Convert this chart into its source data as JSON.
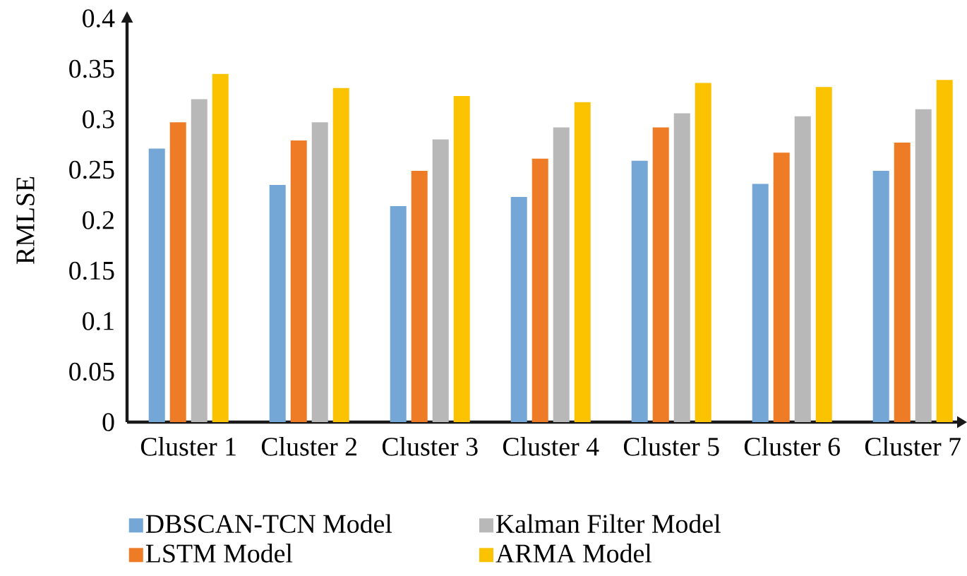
{
  "chart_data": {
    "type": "bar",
    "ylabel": "RMLSE",
    "categories": [
      "Cluster 1",
      "Cluster 2",
      "Cluster 3",
      "Cluster 4",
      "Cluster 5",
      "Cluster 6",
      "Cluster 7"
    ],
    "series": [
      {
        "name": "DBSCAN-TCN Model",
        "color": "#74a6d6",
        "values": [
          0.271,
          0.235,
          0.214,
          0.223,
          0.259,
          0.236,
          0.249
        ]
      },
      {
        "name": "LSTM Model",
        "color": "#ee7b26",
        "values": [
          0.297,
          0.279,
          0.249,
          0.261,
          0.292,
          0.267,
          0.277
        ]
      },
      {
        "name": "Kalman Filter Model",
        "color": "#b8b8b8",
        "values": [
          0.32,
          0.297,
          0.28,
          0.292,
          0.306,
          0.303,
          0.31
        ]
      },
      {
        "name": "ARMA Model",
        "color": "#fbc200",
        "values": [
          0.345,
          0.331,
          0.323,
          0.317,
          0.336,
          0.332,
          0.339
        ]
      }
    ],
    "ylim": [
      0,
      0.4
    ],
    "yticks": [
      0,
      0.05,
      0.1,
      0.15,
      0.2,
      0.25,
      0.3,
      0.35,
      0.4
    ],
    "legend": "bottom"
  }
}
